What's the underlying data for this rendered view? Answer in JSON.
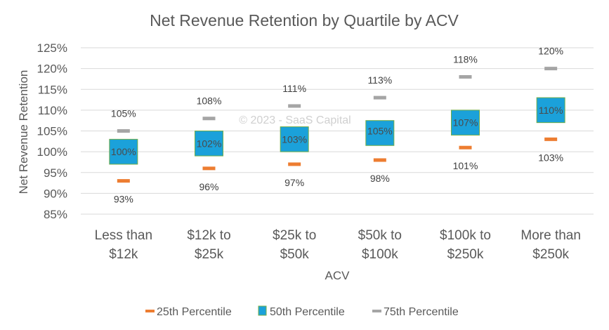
{
  "chart_data": {
    "type": "box",
    "title": "Net Revenue Retention by Quartile by ACV",
    "xlabel": "ACV",
    "ylabel": "Net Revenue Retention",
    "ylim": [
      85,
      125
    ],
    "yticks": [
      85,
      90,
      95,
      100,
      105,
      110,
      115,
      120,
      125
    ],
    "ytick_labels": [
      "85%",
      "90%",
      "95%",
      "100%",
      "105%",
      "110%",
      "115%",
      "120%",
      "125%"
    ],
    "grid": true,
    "categories": [
      [
        "Less than",
        "$12k"
      ],
      [
        "$12k to",
        "$25k"
      ],
      [
        "$25k to",
        "$50k"
      ],
      [
        "$50k to",
        "$100k"
      ],
      [
        "$100k to",
        "$250k"
      ],
      [
        "More than",
        "$250k"
      ]
    ],
    "series": [
      {
        "name": "25th Percentile",
        "values": [
          93,
          96,
          97,
          98,
          101,
          103
        ],
        "labels": [
          "93%",
          "96%",
          "97%",
          "98%",
          "101%",
          "103%"
        ],
        "color": "#ED7D31"
      },
      {
        "name": "50th Percentile",
        "values": [
          100,
          102,
          103,
          105,
          107,
          110
        ],
        "labels": [
          "100%",
          "102%",
          "103%",
          "105%",
          "107%",
          "110%"
        ],
        "color": "#1BA1DA"
      },
      {
        "name": "75th Percentile",
        "values": [
          105,
          108,
          111,
          113,
          118,
          120
        ],
        "labels": [
          "105%",
          "108%",
          "111%",
          "113%",
          "118%",
          "120%"
        ],
        "color": "#A5A5A5"
      }
    ],
    "box_ranges": [
      [
        97,
        103
      ],
      [
        99,
        105
      ],
      [
        100,
        106
      ],
      [
        101.5,
        107.5
      ],
      [
        104,
        110
      ],
      [
        107,
        113
      ]
    ],
    "legend": "bottom",
    "watermark": "© 2023 - SaaS Capital"
  }
}
